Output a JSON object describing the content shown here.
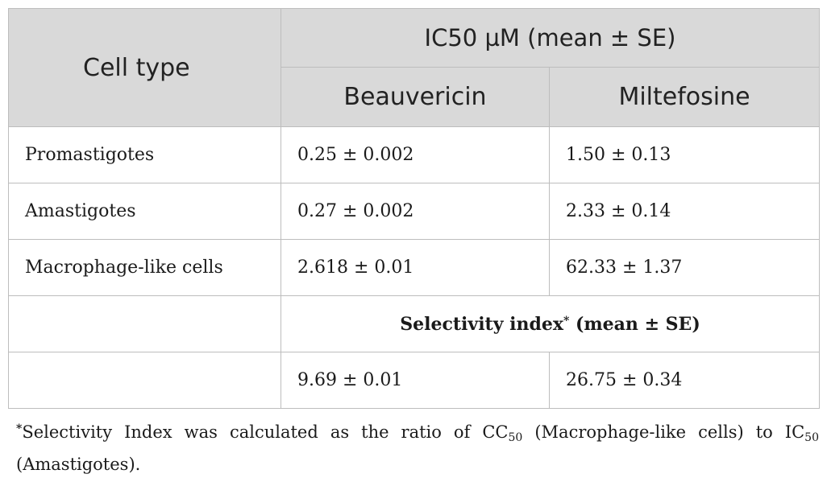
{
  "header": {
    "cell_type": "Cell type",
    "ic50_group": "IC50 µM (mean ± SE)",
    "col_beauvericin": "Beauvericin",
    "col_miltefosine": "Miltefosine"
  },
  "rows": [
    {
      "label": "Promastigotes",
      "beauvericin": "0.25 ± 0.002",
      "miltefosine": "1.50 ± 0.13"
    },
    {
      "label": "Amastigotes",
      "beauvericin": "0.27 ± 0.002",
      "miltefosine": "2.33 ± 0.14"
    },
    {
      "label": "Macrophage-like cells",
      "beauvericin": "2.618 ± 0.01",
      "miltefosine": "62.33 ± 1.37"
    }
  ],
  "selectivity": {
    "title_main": "Selectivity index",
    "title_star": "*",
    "title_suffix": " (mean ± SE)",
    "beauvericin": "9.69 ± 0.01",
    "miltefosine": "26.75 ± 0.34"
  },
  "footnote": {
    "star": "*",
    "part1": "Selectivity Index was calculated as the ratio of CC",
    "sub1": "50",
    "part2": " (Macrophage-like cells) to IC",
    "sub2": "50",
    "part3": " (Amastigotes)."
  }
}
